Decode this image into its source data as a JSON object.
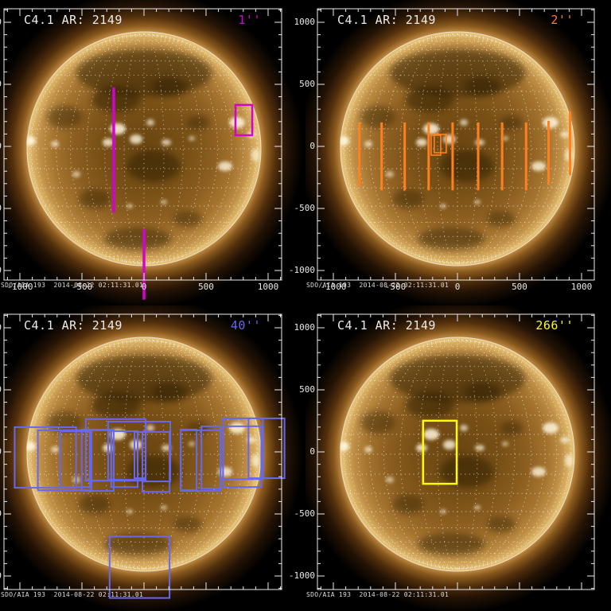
{
  "figure": {
    "title": "C4.1 AR: 2149",
    "timestamp": "SDO/AIA 193  2014-08-22 02:11:31.01",
    "background": "#000000",
    "axis_color": "#ececec",
    "grid_color": "#ffffff",
    "units": "arcsec"
  },
  "axes": {
    "xlim": [
      -1122,
      1122
    ],
    "ylim": [
      -1122,
      1122
    ],
    "major_tick_step": 500,
    "minor_tick_step": 100,
    "x_tick_labels": [
      "-1000",
      "-500",
      "0",
      "500",
      "1000"
    ],
    "x_tick_values": [
      -1000,
      -500,
      0,
      500,
      1000
    ],
    "y_tick_labels": [
      "1000",
      "500",
      "0",
      "-500",
      "-1000"
    ],
    "y_tick_values": [
      1000,
      500,
      0,
      -500,
      -1000
    ]
  },
  "chart_data": {
    "type": "image",
    "image_content": "SDO/AIA 193 full-disk solar EUV image with white dotted heliographic grid and solid white limb circle, repeated in four panels",
    "slit_format": "[x, y_top, y_bottom] arcsec",
    "rect_format": "[x_left, y_bottom, width, height] arcsec",
    "panels": [
      {
        "id": "raster-1",
        "label": "1''",
        "color": "#d400d4",
        "position": "top-left",
        "x_tick_labels_shown": true,
        "slits": [
          [
            -244,
            476,
            -534
          ],
          [
            0,
            -669,
            -1235
          ]
        ],
        "rects": [
          [
            737,
            90,
            135,
            244
          ]
        ]
      },
      {
        "id": "raster-2",
        "label": "2''",
        "color": "#ff8020",
        "position": "top-right",
        "x_tick_labels_shown": true,
        "slits": [
          [
            -791,
            193,
            -322
          ],
          [
            -611,
            193,
            -354
          ],
          [
            -425,
            193,
            -354
          ],
          [
            -232,
            193,
            -354
          ],
          [
            -39,
            193,
            -354
          ],
          [
            167,
            193,
            -354
          ],
          [
            360,
            193,
            -354
          ],
          [
            553,
            193,
            -354
          ],
          [
            734,
            206,
            -309
          ],
          [
            907,
            283,
            -232
          ]
        ],
        "rects": [
          [
            -212,
            -71,
            77,
            161
          ],
          [
            -187,
            -51,
            97,
            148
          ]
        ]
      },
      {
        "id": "raster-40",
        "label": "40''",
        "color": "#6868ee",
        "position": "bottom-left",
        "x_tick_labels_shown": false,
        "slits": [],
        "rects": [
          [
            -1042,
            -289,
            495,
            488
          ],
          [
            -855,
            -309,
            431,
            483
          ],
          [
            -675,
            -283,
            238,
            450
          ],
          [
            -502,
            -315,
            258,
            495
          ],
          [
            -469,
            -232,
            482,
            496
          ],
          [
            -424,
            -232,
            160,
            406
          ],
          [
            -289,
            -225,
            302,
            469
          ],
          [
            -264,
            -283,
            213,
            450
          ],
          [
            -77,
            -212,
            90,
            373
          ],
          [
            -13,
            -322,
            219,
            483
          ],
          [
            13,
            -238,
            199,
            482
          ],
          [
            296,
            -309,
            128,
            489
          ],
          [
            296,
            -315,
            321,
            489
          ],
          [
            463,
            -296,
            154,
            502
          ],
          [
            637,
            -219,
            321,
            489
          ],
          [
            637,
            -283,
            308,
            489
          ],
          [
            842,
            -212,
            290,
            482
          ],
          [
            -277,
            -1177,
            483,
            495
          ]
        ]
      },
      {
        "id": "raster-266",
        "label": "266''",
        "color": "#ffff00",
        "position": "bottom-right",
        "x_tick_labels_shown": false,
        "slits": [],
        "rects": [
          [
            -277,
            -257,
            271,
            508
          ]
        ]
      }
    ]
  }
}
